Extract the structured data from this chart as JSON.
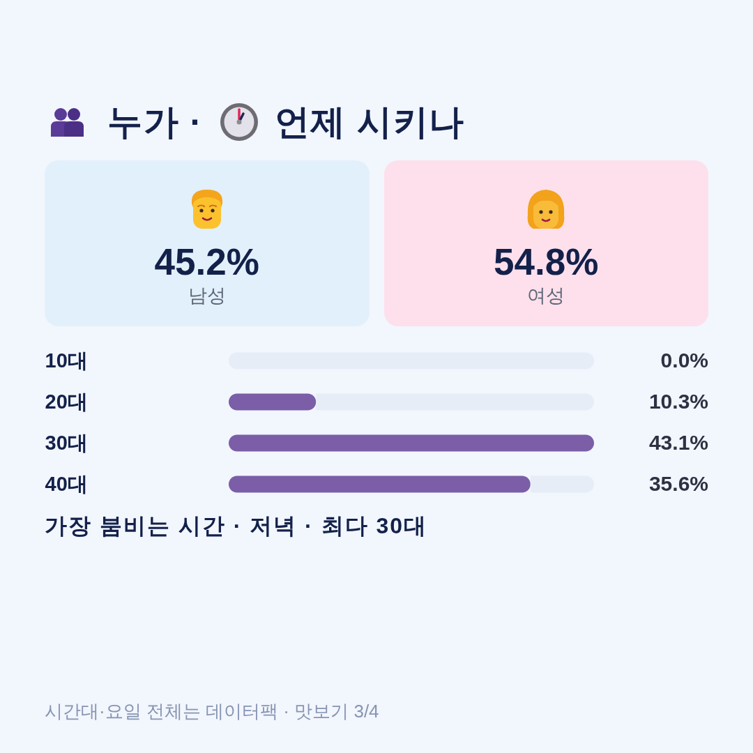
{
  "chart_data": [
    {
      "type": "other",
      "title": "누가 · 언제 시키나",
      "categories": [
        "남성",
        "여성"
      ],
      "value_labels": [
        "45.2%",
        "54.8%"
      ],
      "colors": [
        "#e2f0fb",
        "#fde0ec"
      ]
    },
    {
      "type": "bar",
      "orientation": "horizontal",
      "stacked": true,
      "categories": [
        "10대",
        "20대",
        "30대",
        "40대"
      ],
      "series": [
        {
          "color": "#7b5ea7",
          "values": [
            0.0,
            10.3,
            43.1,
            35.6
          ],
          "value_labels": [
            "0.0%",
            "10.3%",
            "43.1%",
            "35.6%"
          ]
        },
        {
          "color": "#e6edf7",
          "values": [
            43.1,
            32.8,
            0.0,
            7.5
          ]
        }
      ],
      "xlim": [
        0,
        43.1
      ],
      "tick_labels": "y",
      "annotations": [
        "가장 붐비는 시간 · 저녁 · 최다 30대",
        "시간대·요일 전체는 데이터팩 · 맛보기 3/4"
      ]
    }
  ]
}
